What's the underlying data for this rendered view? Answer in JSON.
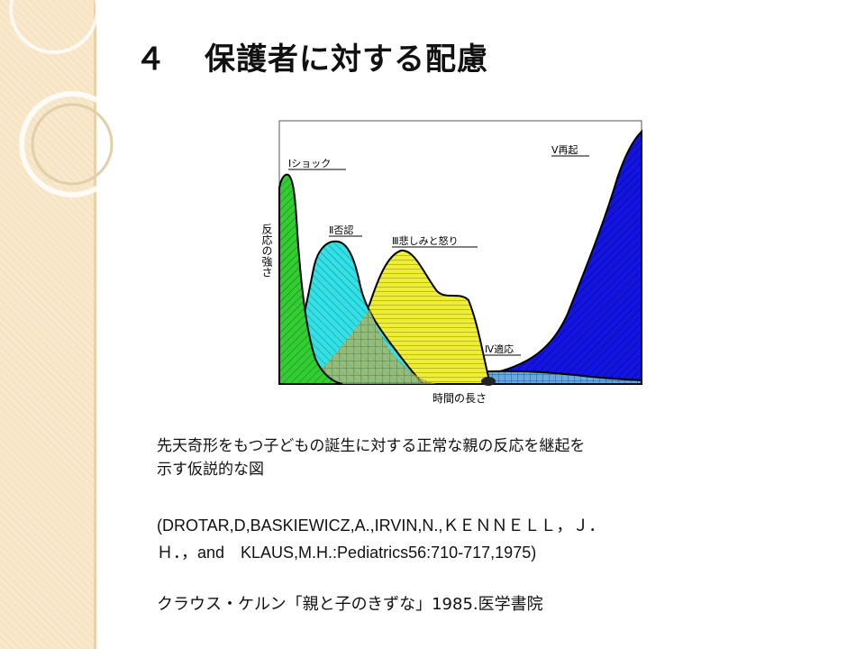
{
  "slide": {
    "title_number": "４",
    "title_text": "保護者に対する配慮"
  },
  "diagram": {
    "y_label": "反応の強さ",
    "x_label": "時間の長さ",
    "stages": [
      {
        "label": "Ⅰショック",
        "color": "#33cc33"
      },
      {
        "label": "Ⅱ否認",
        "color": "#22dddd"
      },
      {
        "label": "Ⅲ悲しみと怒り",
        "color": "#eeee22"
      },
      {
        "label": "Ⅳ適応",
        "color": "#5599dd"
      },
      {
        "label": "Ⅴ再起",
        "color": "#1111dd"
      }
    ]
  },
  "caption": {
    "line1": "先天奇形をもつ子どもの誕生に対する正常な親の反応を継起を",
    "line2": "示す仮説的な図"
  },
  "reference": {
    "line1": "(DROTAR,D,BASKIEWICZ,A.,IRVIN,N.,ＫＥＮＮＥＬＬ，Ｊ．",
    "line2": "Ｈ．，and　KLAUS,M.H.:Pediatrics56:710-717,1975)"
  },
  "book": "クラウス・ケルン「親と子のきずな」1985.医学書院"
}
